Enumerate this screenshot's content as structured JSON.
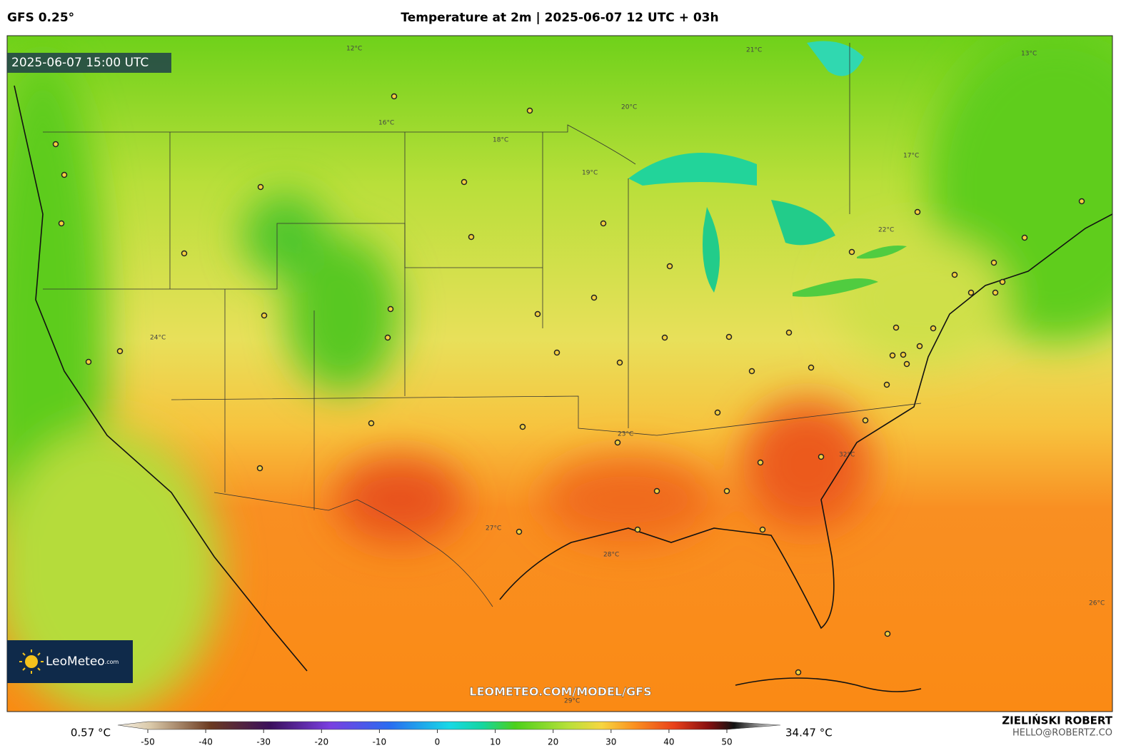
{
  "header": {
    "model": "GFS 0.25°",
    "title": "Temperature at 2m | 2025-06-07 12 UTC + 03h"
  },
  "map": {
    "valid_time": "2025-06-07 15:00 UTC",
    "logo": "LeoMeteo",
    "logo_suffix": ".com",
    "watermark": "LEOMETEO.COM/MODEL/GFS",
    "contour_labels": [
      "12°C",
      "16°C",
      "18°C",
      "19°C",
      "20°C",
      "21°C",
      "22°C",
      "24°C",
      "27°C",
      "28°C",
      "32°C",
      "13°C",
      "17°C",
      "23°C",
      "26°C",
      "29°C"
    ]
  },
  "legend": {
    "min_label": "0.57 °C",
    "max_label": "34.47 °C",
    "ticks": [
      -50,
      -40,
      -30,
      -20,
      -10,
      0,
      10,
      20,
      30,
      40,
      50
    ]
  },
  "footer": {
    "author": "ZIELIŃSKI ROBERT",
    "contact": "HELLO@ROBERTZ.CO"
  }
}
